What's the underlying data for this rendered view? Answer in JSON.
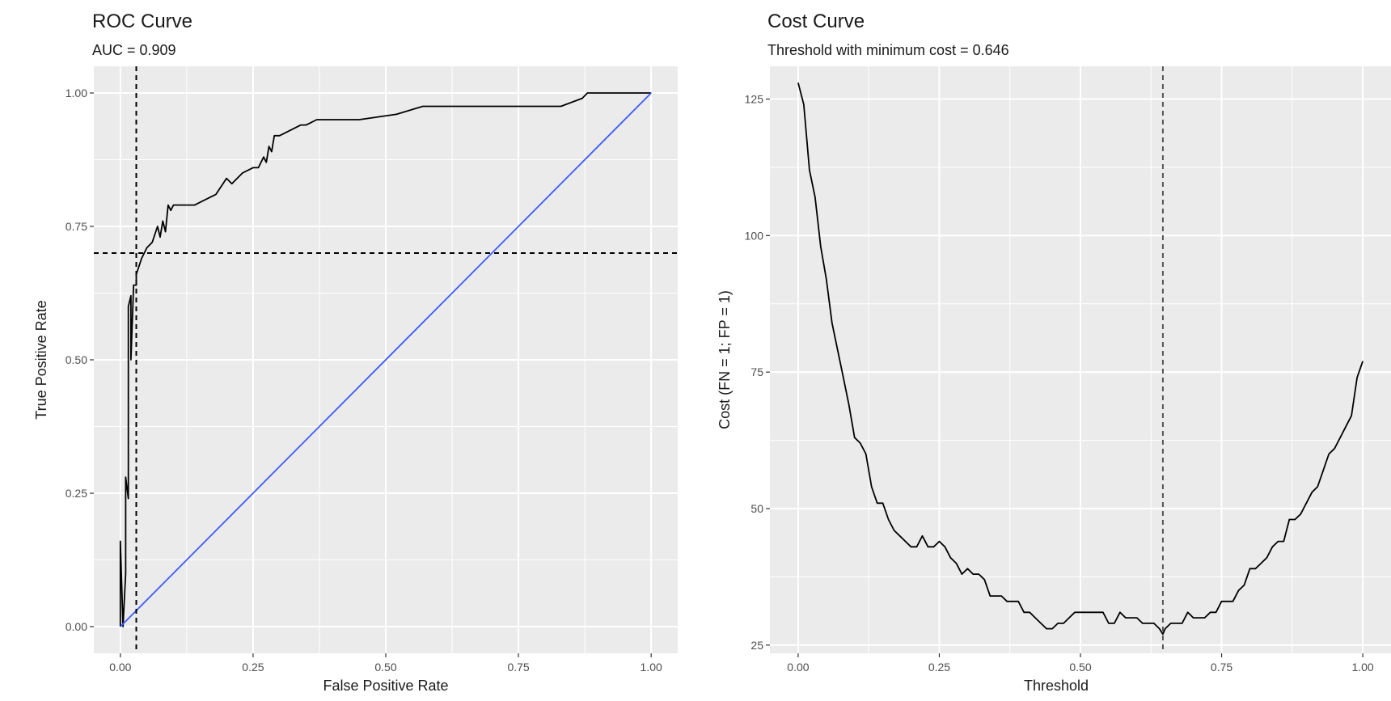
{
  "chart_data": [
    {
      "type": "line",
      "title": "ROC Curve",
      "subtitle": "AUC = 0.909",
      "xlabel": "False Positive Rate",
      "ylabel": "True Positive Rate",
      "xlim": [
        -0.05,
        1.05
      ],
      "ylim": [
        -0.05,
        1.05
      ],
      "x_ticks": [
        0,
        0.25,
        0.5,
        0.75,
        1.0
      ],
      "x_tick_labels": [
        "0.00",
        "0.25",
        "0.50",
        "0.75",
        "1.00"
      ],
      "y_ticks": [
        0,
        0.25,
        0.5,
        0.75,
        1.0
      ],
      "y_tick_labels": [
        "0.00",
        "0.25",
        "0.50",
        "0.75",
        "1.00"
      ],
      "grid": true,
      "series": [
        {
          "color": "#000000",
          "x": [
            0,
            0,
            0.005,
            0.01,
            0.01,
            0.015,
            0.015,
            0.02,
            0.02,
            0.025,
            0.03,
            0.03,
            0.04,
            0.05,
            0.06,
            0.07,
            0.075,
            0.08,
            0.085,
            0.09,
            0.095,
            0.1,
            0.14,
            0.18,
            0.2,
            0.21,
            0.23,
            0.25,
            0.26,
            0.27,
            0.275,
            0.28,
            0.285,
            0.29,
            0.3,
            0.32,
            0.34,
            0.35,
            0.37,
            0.45,
            0.52,
            0.57,
            0.65,
            0.75,
            0.83,
            0.87,
            0.88,
            1.0
          ],
          "y": [
            0,
            0.16,
            0.0,
            0.1,
            0.28,
            0.24,
            0.6,
            0.62,
            0.5,
            0.64,
            0.64,
            0.66,
            0.69,
            0.71,
            0.72,
            0.75,
            0.73,
            0.76,
            0.74,
            0.79,
            0.78,
            0.79,
            0.79,
            0.81,
            0.84,
            0.83,
            0.85,
            0.86,
            0.86,
            0.88,
            0.87,
            0.9,
            0.89,
            0.92,
            0.92,
            0.93,
            0.94,
            0.94,
            0.95,
            0.95,
            0.96,
            0.975,
            0.975,
            0.975,
            0.975,
            0.99,
            1.0,
            1.0
          ]
        },
        {
          "color": "#3d5afe",
          "x": [
            0,
            1
          ],
          "y": [
            0,
            1
          ]
        }
      ],
      "reference_lines": {
        "vline_x": 0.03,
        "hline_y": 0.7,
        "style": "dashed",
        "color": "#000000"
      }
    },
    {
      "type": "line",
      "title": "Cost Curve",
      "subtitle": "Threshold with minimum cost = 0.646",
      "xlabel": "Threshold",
      "ylabel": "Cost (FN = 1; FP = 1)",
      "xlim": [
        -0.05,
        1.05
      ],
      "ylim": [
        23.5,
        131
      ],
      "x_ticks": [
        0,
        0.25,
        0.5,
        0.75,
        1.0
      ],
      "x_tick_labels": [
        "0.00",
        "0.25",
        "0.50",
        "0.75",
        "1.00"
      ],
      "y_ticks": [
        25,
        50,
        75,
        100,
        125
      ],
      "y_tick_labels": [
        "25",
        "50",
        "75",
        "100",
        "125"
      ],
      "grid": true,
      "series": [
        {
          "color": "#000000",
          "x": [
            0,
            0.01,
            0.02,
            0.03,
            0.04,
            0.05,
            0.06,
            0.07,
            0.08,
            0.09,
            0.1,
            0.11,
            0.12,
            0.13,
            0.14,
            0.15,
            0.16,
            0.17,
            0.18,
            0.19,
            0.2,
            0.21,
            0.22,
            0.23,
            0.24,
            0.25,
            0.26,
            0.27,
            0.28,
            0.29,
            0.3,
            0.31,
            0.32,
            0.33,
            0.34,
            0.35,
            0.36,
            0.37,
            0.38,
            0.39,
            0.4,
            0.41,
            0.42,
            0.43,
            0.44,
            0.45,
            0.46,
            0.47,
            0.48,
            0.49,
            0.5,
            0.51,
            0.52,
            0.53,
            0.54,
            0.55,
            0.56,
            0.57,
            0.58,
            0.59,
            0.6,
            0.61,
            0.62,
            0.63,
            0.64,
            0.646,
            0.65,
            0.66,
            0.67,
            0.68,
            0.69,
            0.7,
            0.71,
            0.72,
            0.73,
            0.74,
            0.75,
            0.76,
            0.77,
            0.78,
            0.79,
            0.8,
            0.81,
            0.82,
            0.83,
            0.84,
            0.85,
            0.86,
            0.87,
            0.88,
            0.89,
            0.9,
            0.91,
            0.92,
            0.93,
            0.94,
            0.95,
            0.96,
            0.97,
            0.98,
            0.99,
            1.0
          ],
          "y": [
            128,
            124,
            112,
            107,
            98,
            92,
            84,
            79,
            74,
            69,
            63,
            62,
            60,
            54,
            51,
            51,
            48,
            46,
            45,
            44,
            43,
            43,
            45,
            43,
            43,
            44,
            43,
            41,
            40,
            38,
            39,
            38,
            38,
            37,
            34,
            34,
            34,
            33,
            33,
            33,
            31,
            31,
            30,
            29,
            28,
            28,
            29,
            29,
            30,
            31,
            31,
            31,
            31,
            31,
            31,
            29,
            29,
            31,
            30,
            30,
            30,
            29,
            29,
            29,
            28,
            27,
            28,
            29,
            29,
            29,
            31,
            30,
            30,
            30,
            31,
            31,
            33,
            33,
            33,
            35,
            36,
            39,
            39,
            40,
            41,
            43,
            44,
            44,
            48,
            48,
            49,
            51,
            53,
            54,
            57,
            60,
            61,
            63,
            65,
            67,
            74,
            77
          ]
        }
      ],
      "reference_lines": {
        "vline_x": 0.646,
        "style": "dashed",
        "color": "#555555"
      }
    }
  ]
}
